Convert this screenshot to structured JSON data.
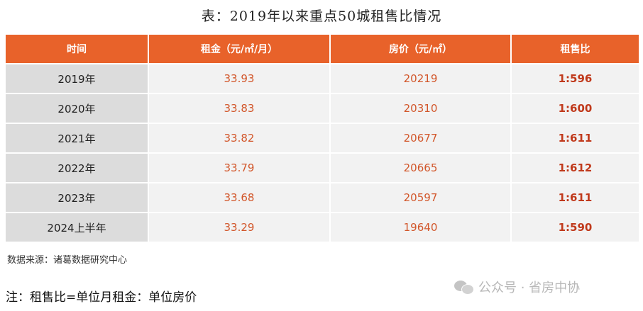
{
  "title": "表：2019年以来重点50城租售比情况",
  "table": {
    "headers": [
      "时间",
      "租金（元/㎡/月）",
      "房价（元/㎡）",
      "租售比"
    ],
    "rows": [
      [
        "2019年",
        "33.93",
        "20219",
        "1:596"
      ],
      [
        "2020年",
        "33.83",
        "20310",
        "1:600"
      ],
      [
        "2021年",
        "33.82",
        "20677",
        "1:611"
      ],
      [
        "2022年",
        "33.79",
        "20665",
        "1:612"
      ],
      [
        "2023年",
        "33.68",
        "20597",
        "1:611"
      ],
      [
        "2024上半年",
        "33.29",
        "19640",
        "1:590"
      ]
    ]
  },
  "source": "数据来源：诸葛数据研究中心",
  "note": "注：租售比=单位月租金：单位房价",
  "watermark": {
    "text": "公众号 · 省房中协",
    "icon": "wechat-icon"
  },
  "colors": {
    "header_bg": "#e8622a",
    "value_text": "#d2562a",
    "ratio_text": "#c0391b",
    "year_cell_bg": "#dcdcdc",
    "cell_bg": "#f2f2f2"
  }
}
